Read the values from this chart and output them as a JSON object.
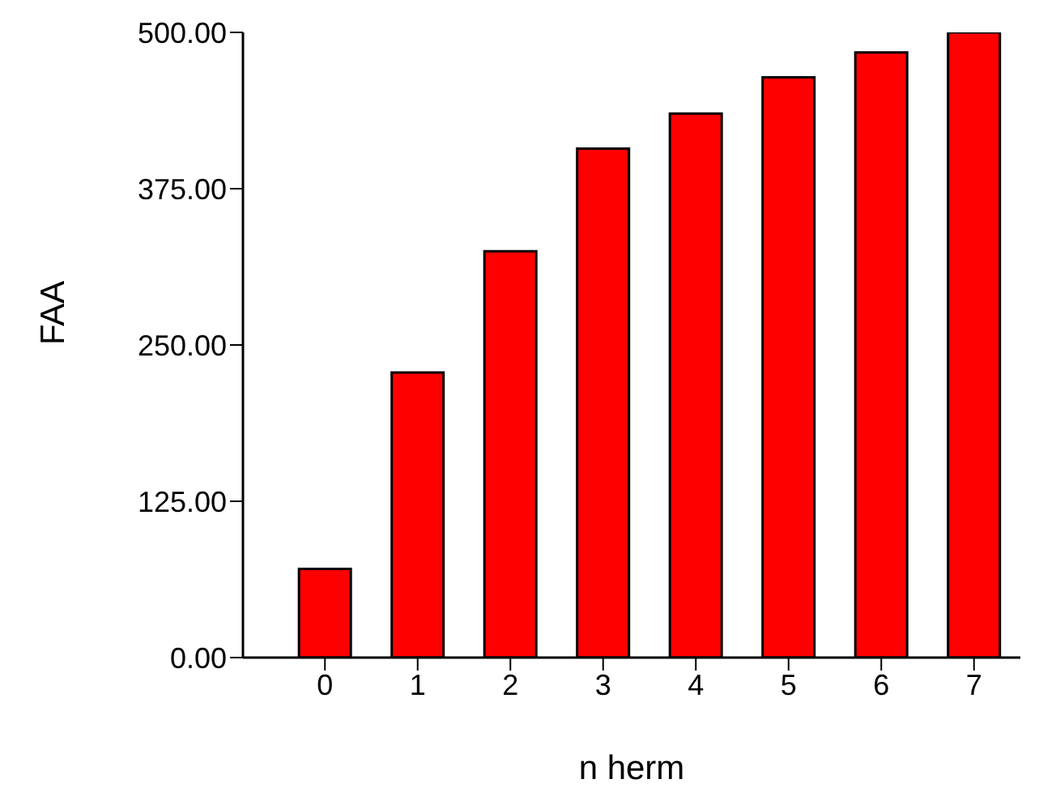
{
  "chart_data": {
    "type": "bar",
    "xlabel": "n herm",
    "ylabel": "FAA",
    "categories": [
      "0",
      "1",
      "2",
      "3",
      "4",
      "5",
      "6",
      "7"
    ],
    "values": [
      71,
      228,
      325,
      407,
      435,
      464,
      484,
      500
    ],
    "color": "#ff0000",
    "ylim": [
      0,
      500
    ],
    "yticks": [
      {
        "value": 0,
        "label": "0.00"
      },
      {
        "value": 125,
        "label": "125.00"
      },
      {
        "value": 250,
        "label": "250.00"
      },
      {
        "value": 375,
        "label": "375.00"
      },
      {
        "value": 500,
        "label": "500.00"
      }
    ],
    "grid": false,
    "legend": false
  }
}
